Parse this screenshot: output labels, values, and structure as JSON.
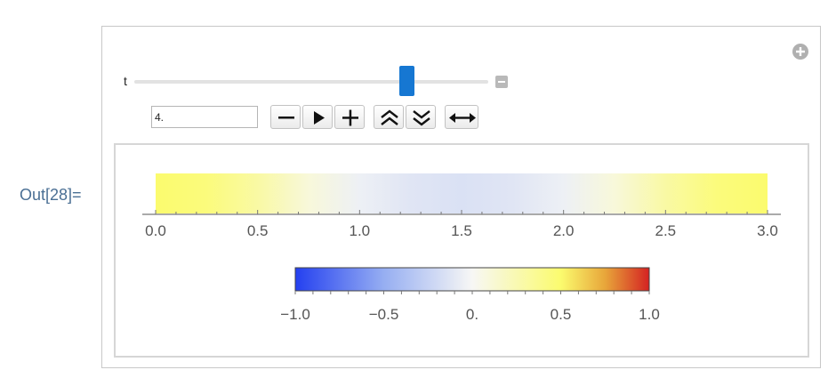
{
  "output_label": "Out[28]=",
  "slider": {
    "label": "t",
    "value": 4.0,
    "min": 0,
    "max": 5.2,
    "input_value": "4."
  },
  "controls": [
    {
      "name": "decrement-button",
      "icon": "minus-icon"
    },
    {
      "name": "play-button",
      "icon": "play-icon"
    },
    {
      "name": "increment-button",
      "icon": "plus-icon"
    },
    {
      "name": "faster-button",
      "icon": "double-chevron-up-icon"
    },
    {
      "name": "slower-button",
      "icon": "double-chevron-down-icon"
    },
    {
      "name": "direction-button",
      "icon": "left-right-arrow-icon"
    }
  ],
  "chart_data": [
    {
      "type": "heatmap",
      "x_range": [
        0,
        3
      ],
      "x_ticks": [
        "0.0",
        "0.5",
        "1.0",
        "1.5",
        "2.0",
        "2.5",
        "3.0"
      ],
      "x_tick_values": [
        0,
        0.5,
        1.0,
        1.5,
        2.0,
        2.5,
        3.0
      ],
      "minor_ticks_per_major": 5,
      "profile": {
        "x": [
          0,
          0.25,
          0.5,
          0.75,
          1.0,
          1.25,
          1.5,
          1.75,
          2.0,
          2.25,
          2.5,
          2.75,
          3.0
        ],
        "values": [
          0.5,
          0.45,
          0.3,
          0.1,
          -0.05,
          -0.12,
          -0.15,
          -0.12,
          -0.05,
          0.1,
          0.3,
          0.45,
          0.5
        ]
      }
    },
    {
      "type": "colorbar",
      "range": [
        -1.0,
        1.0
      ],
      "tick_labels": [
        "−1.0",
        "−0.5",
        "0.",
        "0.5",
        "1.0"
      ],
      "tick_values": [
        -1.0,
        -0.5,
        0,
        0.5,
        1.0
      ],
      "colors": [
        {
          "stop": -1.0,
          "color": "#2440f0"
        },
        {
          "stop": -0.5,
          "color": "#96aef2"
        },
        {
          "stop": 0.0,
          "color": "#f7f7f5"
        },
        {
          "stop": 0.5,
          "color": "#fbfb6e"
        },
        {
          "stop": 0.75,
          "color": "#e8a63a"
        },
        {
          "stop": 1.0,
          "color": "#d42222"
        }
      ]
    }
  ],
  "colors": {
    "out_label": "#4a6f94",
    "slider_thumb": "#1677d2",
    "frame": "#c8c8c8"
  }
}
